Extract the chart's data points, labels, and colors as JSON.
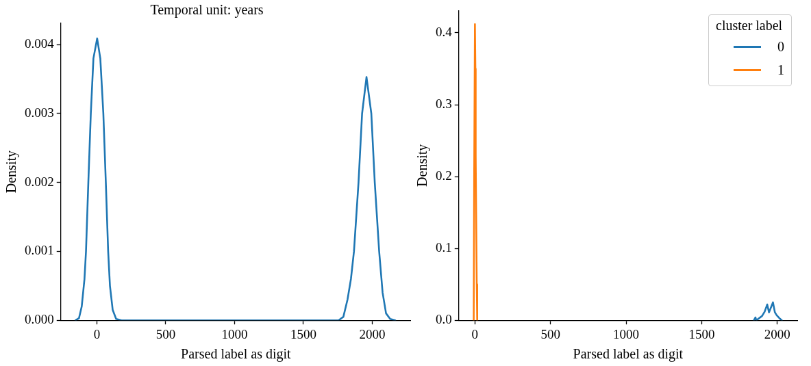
{
  "chart_data": [
    {
      "type": "line",
      "title": "Temporal unit: years",
      "xlabel": "Parsed label as digit",
      "ylabel": "Density",
      "xlim": [
        -262,
        2281
      ],
      "xticks": [
        0,
        500,
        1000,
        1500,
        2000
      ],
      "ylim": [
        0,
        0.00431
      ],
      "yticks": [
        {
          "value": 0,
          "label": "0.000"
        },
        {
          "value": 0.001,
          "label": "0.001"
        },
        {
          "value": 0.002,
          "label": "0.002"
        },
        {
          "value": 0.003,
          "label": "0.003"
        },
        {
          "value": 0.004,
          "label": "0.004"
        }
      ],
      "grid": false,
      "legend": false,
      "series": [
        {
          "color": "#1f77b4",
          "x": [
            -155,
            -130,
            -110,
            -90,
            -79,
            -62,
            -44,
            -25,
            2,
            25,
            47,
            65,
            82,
            95,
            115,
            140,
            180,
            1000,
            1755,
            1790,
            1820,
            1845,
            1867,
            1900,
            1926,
            1958,
            1993,
            2018,
            2050,
            2075,
            2100,
            2130,
            2167
          ],
          "values": [
            0,
            3e-05,
            0.0002,
            0.0006,
            0.001,
            0.002,
            0.003,
            0.0038,
            0.00409,
            0.0038,
            0.003,
            0.002,
            0.001,
            0.0005,
            0.00015,
            2e-05,
            0,
            0,
            0,
            5e-05,
            0.0003,
            0.0006,
            0.001,
            0.002,
            0.003,
            0.00353,
            0.003,
            0.002,
            0.001,
            0.0004,
            0.0001,
            2e-05,
            0
          ]
        }
      ]
    },
    {
      "type": "line",
      "xlabel": "Parsed label as digit",
      "ylabel": "Density",
      "legend_title": "cluster label",
      "xlim": [
        -107,
        2132
      ],
      "xticks": [
        0,
        500,
        1000,
        1500,
        2000
      ],
      "ylim": [
        0,
        0.431
      ],
      "yticks": [
        {
          "value": 0,
          "label": "0.0"
        },
        0.1,
        0.2,
        0.3,
        0.4
      ],
      "grid": false,
      "legend": "top right",
      "series": [
        {
          "name": "0",
          "color": "#1f77b4",
          "x": [
            1845,
            1855,
            1861,
            1899,
            1916,
            1933,
            1945,
            1971,
            1984,
            1996,
            2018,
            2030
          ],
          "values": [
            0,
            0.004,
            0,
            0.006,
            0.012,
            0.022,
            0.011,
            0.025,
            0.011,
            0.007,
            0.002,
            0
          ]
        },
        {
          "name": "1",
          "color": "#ff7f0e",
          "x": [
            -8,
            -5,
            0,
            3,
            5,
            8,
            12,
            15
          ],
          "values": [
            0,
            0.2,
            0.412,
            0.35,
            0.23,
            0.15,
            0.05,
            0
          ]
        }
      ]
    }
  ]
}
